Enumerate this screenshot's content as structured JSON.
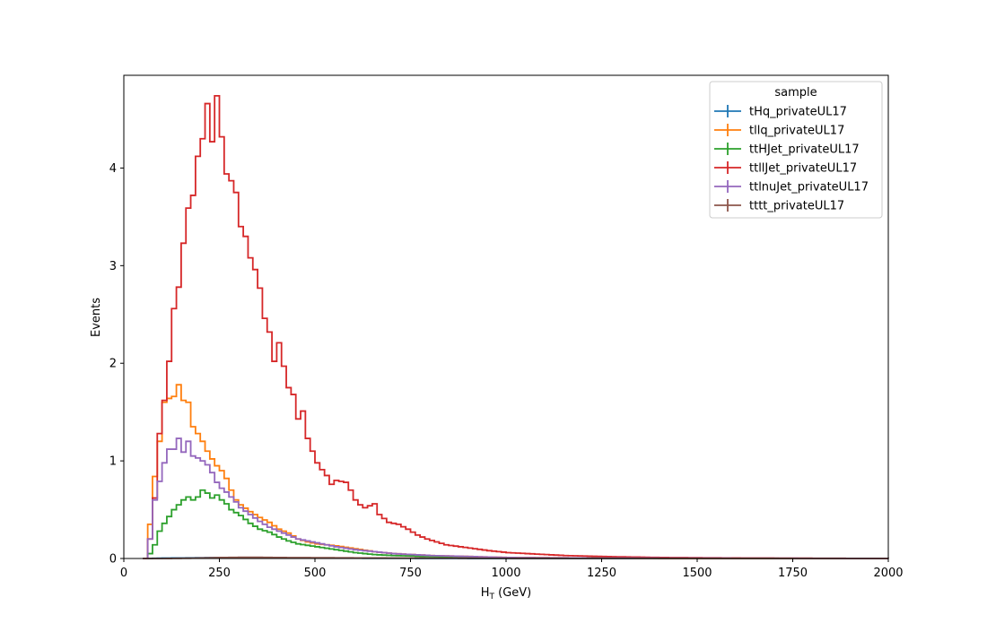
{
  "chart_data": {
    "type": "line",
    "histtype": "step",
    "xlabel": "H",
    "xlabel_sub": "T",
    "xlabel_unit": " (GeV)",
    "ylabel": "Events",
    "xlim": [
      0,
      2000
    ],
    "ylim": [
      0,
      4.95
    ],
    "xticks": [
      0,
      250,
      500,
      750,
      1000,
      1250,
      1500,
      1750,
      2000
    ],
    "yticks": [
      0,
      1,
      2,
      3,
      4
    ],
    "grid": false,
    "legend": {
      "title": "sample",
      "placement": "top-right"
    },
    "bin_width": 12.5,
    "series": [
      {
        "name": "tHq_privateUL17",
        "color": "#1f77b4",
        "points": [
          [
            50,
            0
          ],
          [
            62.5,
            0
          ],
          [
            75,
            0.002
          ],
          [
            100,
            0.004
          ],
          [
            150,
            0.006
          ],
          [
            200,
            0.008
          ],
          [
            250,
            0.01
          ],
          [
            300,
            0.008
          ],
          [
            400,
            0.006
          ],
          [
            500,
            0.004
          ],
          [
            750,
            0.002
          ],
          [
            1000,
            0
          ],
          [
            2000,
            0
          ]
        ]
      },
      {
        "name": "tllq_privateUL17",
        "color": "#ff7f0e",
        "points": [
          [
            50,
            0
          ],
          [
            62.5,
            0.35
          ],
          [
            75,
            0.84
          ],
          [
            87.5,
            1.2
          ],
          [
            100,
            1.6
          ],
          [
            112.5,
            1.64
          ],
          [
            125,
            1.66
          ],
          [
            137.5,
            1.78
          ],
          [
            150,
            1.62
          ],
          [
            162.5,
            1.6
          ],
          [
            175,
            1.35
          ],
          [
            187.5,
            1.28
          ],
          [
            200,
            1.2
          ],
          [
            212.5,
            1.1
          ],
          [
            225,
            1.02
          ],
          [
            237.5,
            0.95
          ],
          [
            250,
            0.9
          ],
          [
            262.5,
            0.82
          ],
          [
            275,
            0.7
          ],
          [
            287.5,
            0.6
          ],
          [
            300,
            0.55
          ],
          [
            325,
            0.48
          ],
          [
            350,
            0.42
          ],
          [
            375,
            0.37
          ],
          [
            400,
            0.3
          ],
          [
            425,
            0.26
          ],
          [
            450,
            0.2
          ],
          [
            475,
            0.17
          ],
          [
            500,
            0.15
          ],
          [
            550,
            0.13
          ],
          [
            600,
            0.1
          ],
          [
            650,
            0.07
          ],
          [
            700,
            0.05
          ],
          [
            750,
            0.04
          ],
          [
            800,
            0.03
          ],
          [
            900,
            0.02
          ],
          [
            1000,
            0.01
          ],
          [
            1200,
            0.005
          ],
          [
            1400,
            0.002
          ],
          [
            2000,
            0
          ]
        ]
      },
      {
        "name": "ttHJet_privateUL17",
        "color": "#2ca02c",
        "points": [
          [
            50,
            0
          ],
          [
            62.5,
            0.05
          ],
          [
            75,
            0.14
          ],
          [
            87.5,
            0.28
          ],
          [
            100,
            0.36
          ],
          [
            112.5,
            0.43
          ],
          [
            125,
            0.5
          ],
          [
            137.5,
            0.55
          ],
          [
            150,
            0.6
          ],
          [
            162.5,
            0.63
          ],
          [
            175,
            0.6
          ],
          [
            187.5,
            0.63
          ],
          [
            200,
            0.7
          ],
          [
            212.5,
            0.67
          ],
          [
            225,
            0.62
          ],
          [
            237.5,
            0.65
          ],
          [
            250,
            0.6
          ],
          [
            262.5,
            0.56
          ],
          [
            275,
            0.5
          ],
          [
            287.5,
            0.47
          ],
          [
            300,
            0.44
          ],
          [
            325,
            0.36
          ],
          [
            350,
            0.3
          ],
          [
            375,
            0.27
          ],
          [
            400,
            0.22
          ],
          [
            425,
            0.18
          ],
          [
            450,
            0.15
          ],
          [
            500,
            0.12
          ],
          [
            550,
            0.09
          ],
          [
            600,
            0.06
          ],
          [
            650,
            0.04
          ],
          [
            700,
            0.03
          ],
          [
            800,
            0.02
          ],
          [
            900,
            0.01
          ],
          [
            1000,
            0.005
          ],
          [
            2000,
            0
          ]
        ]
      },
      {
        "name": "ttllJet_privateUL17",
        "color": "#d62728",
        "points": [
          [
            50,
            0
          ],
          [
            62.5,
            0.2
          ],
          [
            75,
            0.62
          ],
          [
            87.5,
            1.28
          ],
          [
            100,
            1.62
          ],
          [
            112.5,
            2.02
          ],
          [
            125,
            2.56
          ],
          [
            137.5,
            2.78
          ],
          [
            150,
            3.23
          ],
          [
            162.5,
            3.59
          ],
          [
            175,
            3.72
          ],
          [
            187.5,
            4.12
          ],
          [
            200,
            4.3
          ],
          [
            212.5,
            4.66
          ],
          [
            225,
            4.27
          ],
          [
            237.5,
            4.74
          ],
          [
            250,
            4.32
          ],
          [
            262.5,
            3.94
          ],
          [
            275,
            3.87
          ],
          [
            287.5,
            3.75
          ],
          [
            300,
            3.4
          ],
          [
            312.5,
            3.3
          ],
          [
            325,
            3.08
          ],
          [
            337.5,
            2.96
          ],
          [
            350,
            2.77
          ],
          [
            362.5,
            2.46
          ],
          [
            375,
            2.32
          ],
          [
            387.5,
            2.02
          ],
          [
            400,
            2.21
          ],
          [
            412.5,
            1.97
          ],
          [
            425,
            1.75
          ],
          [
            437.5,
            1.68
          ],
          [
            450,
            1.43
          ],
          [
            462.5,
            1.51
          ],
          [
            475,
            1.23
          ],
          [
            487.5,
            1.1
          ],
          [
            500,
            0.98
          ],
          [
            512.5,
            0.91
          ],
          [
            525,
            0.85
          ],
          [
            537.5,
            0.76
          ],
          [
            550,
            0.8
          ],
          [
            575,
            0.78
          ],
          [
            587.5,
            0.7
          ],
          [
            600,
            0.6
          ],
          [
            612.5,
            0.55
          ],
          [
            625,
            0.52
          ],
          [
            650,
            0.56
          ],
          [
            662.5,
            0.45
          ],
          [
            687.5,
            0.37
          ],
          [
            712.5,
            0.35
          ],
          [
            737.5,
            0.3
          ],
          [
            762.5,
            0.24
          ],
          [
            787.5,
            0.2
          ],
          [
            812.5,
            0.17
          ],
          [
            837.5,
            0.14
          ],
          [
            875,
            0.12
          ],
          [
            912.5,
            0.1
          ],
          [
            950,
            0.08
          ],
          [
            1000,
            0.06
          ],
          [
            1050,
            0.05
          ],
          [
            1100,
            0.04
          ],
          [
            1150,
            0.03
          ],
          [
            1250,
            0.02
          ],
          [
            1400,
            0.01
          ],
          [
            1600,
            0.005
          ],
          [
            2000,
            0
          ]
        ]
      },
      {
        "name": "ttlnuJet_privateUL17",
        "color": "#9467bd",
        "points": [
          [
            50,
            0
          ],
          [
            62.5,
            0.2
          ],
          [
            75,
            0.6
          ],
          [
            87.5,
            0.79
          ],
          [
            100,
            0.98
          ],
          [
            112.5,
            1.12
          ],
          [
            125,
            1.12
          ],
          [
            137.5,
            1.23
          ],
          [
            150,
            1.09
          ],
          [
            162.5,
            1.2
          ],
          [
            175,
            1.05
          ],
          [
            187.5,
            1.03
          ],
          [
            200,
            1.0
          ],
          [
            212.5,
            0.96
          ],
          [
            225,
            0.88
          ],
          [
            237.5,
            0.78
          ],
          [
            250,
            0.72
          ],
          [
            262.5,
            0.68
          ],
          [
            275,
            0.63
          ],
          [
            287.5,
            0.58
          ],
          [
            300,
            0.52
          ],
          [
            325,
            0.45
          ],
          [
            350,
            0.38
          ],
          [
            375,
            0.32
          ],
          [
            400,
            0.28
          ],
          [
            425,
            0.24
          ],
          [
            450,
            0.2
          ],
          [
            475,
            0.18
          ],
          [
            500,
            0.16
          ],
          [
            550,
            0.12
          ],
          [
            600,
            0.09
          ],
          [
            650,
            0.07
          ],
          [
            700,
            0.05
          ],
          [
            750,
            0.04
          ],
          [
            800,
            0.03
          ],
          [
            900,
            0.02
          ],
          [
            1000,
            0.01
          ],
          [
            1200,
            0.005
          ],
          [
            2000,
            0
          ]
        ]
      },
      {
        "name": "tttt_privateUL17",
        "color": "#8c564b",
        "points": [
          [
            50,
            0
          ],
          [
            100,
            0
          ],
          [
            150,
            0.002
          ],
          [
            200,
            0.005
          ],
          [
            250,
            0.01
          ],
          [
            300,
            0.012
          ],
          [
            350,
            0.012
          ],
          [
            400,
            0.01
          ],
          [
            500,
            0.008
          ],
          [
            600,
            0.006
          ],
          [
            750,
            0.004
          ],
          [
            1000,
            0.002
          ],
          [
            1250,
            0.001
          ],
          [
            2000,
            0
          ]
        ]
      }
    ]
  }
}
